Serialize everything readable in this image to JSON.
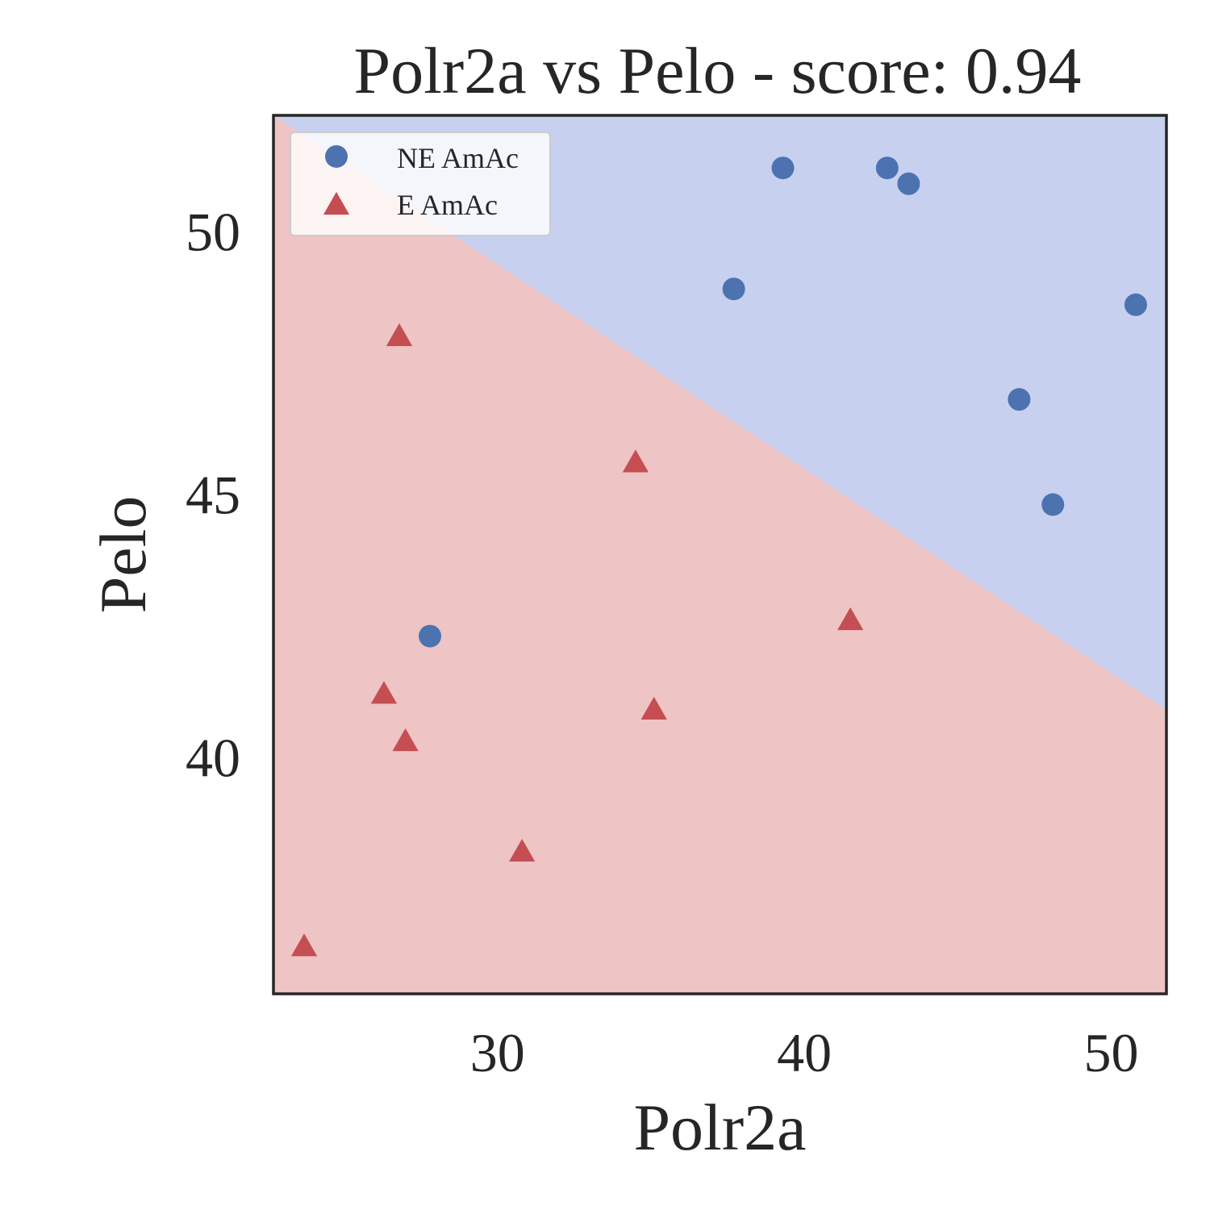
{
  "chart_data": {
    "type": "scatter",
    "title": "Polr2a vs Pelo - score: 0.94",
    "xlabel": "Polr2a",
    "ylabel": "Pelo",
    "xlim": [
      22.7,
      51.8
    ],
    "ylim": [
      35.5,
      52.2
    ],
    "xticks": [
      30,
      40,
      50
    ],
    "yticks": [
      40,
      45,
      50
    ],
    "grid": false,
    "legend_position": "top-left",
    "decision_boundary": {
      "points": [
        [
          22.7,
          52.2
        ],
        [
          51.8,
          40.9
        ]
      ],
      "above_region_color": "#c8d0f0",
      "below_region_color": "#eec4c4"
    },
    "series": [
      {
        "name": "NE AmAc",
        "marker": "circle",
        "color": "#4c72b0",
        "points": [
          [
            39.3,
            51.2
          ],
          [
            42.7,
            51.2
          ],
          [
            43.4,
            50.9
          ],
          [
            37.7,
            48.9
          ],
          [
            50.8,
            48.6
          ],
          [
            47.0,
            46.8
          ],
          [
            48.1,
            44.8
          ],
          [
            27.8,
            42.3
          ]
        ]
      },
      {
        "name": "E AmAc",
        "marker": "triangle",
        "color": "#c44e52",
        "points": [
          [
            26.8,
            48.0
          ],
          [
            34.5,
            45.6
          ],
          [
            41.5,
            42.6
          ],
          [
            26.3,
            41.2
          ],
          [
            35.1,
            40.9
          ],
          [
            27.0,
            40.3
          ],
          [
            30.8,
            38.2
          ],
          [
            23.7,
            36.4
          ]
        ]
      }
    ]
  }
}
